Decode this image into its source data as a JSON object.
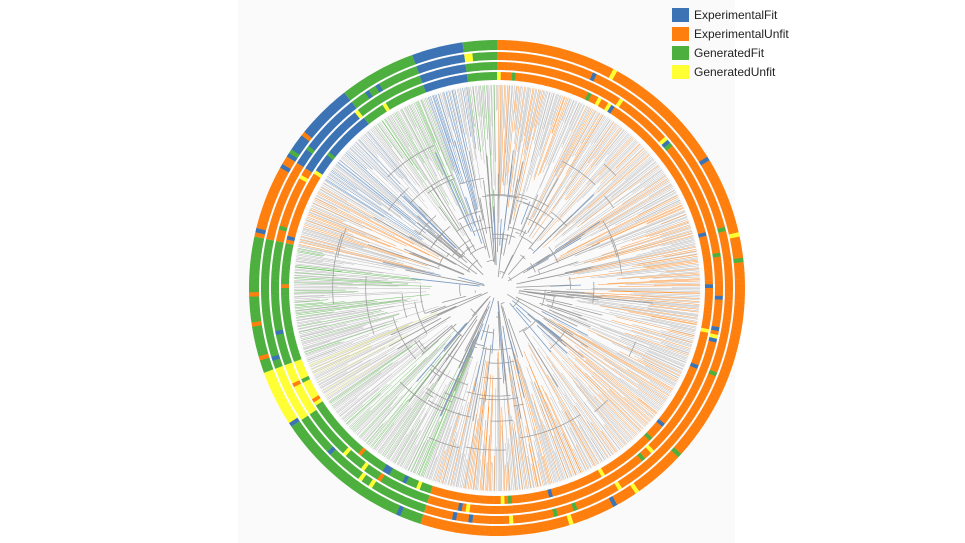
{
  "legend": {
    "items": [
      {
        "label": "ExperimentalFit",
        "color": "#3b73b4"
      },
      {
        "label": "ExperimentalUnfit",
        "color": "#ff7f0e"
      },
      {
        "label": "GeneratedFit",
        "color": "#4caf3e"
      },
      {
        "label": "GeneratedUnfit",
        "color": "#ffff33"
      }
    ]
  },
  "tree": {
    "branch_color": "#aaaaaa",
    "ring_count": 4,
    "sectors": [
      {
        "category": "ExperimentalUnfit",
        "start_deg": -90,
        "end_deg": 108
      },
      {
        "category": "GeneratedFit",
        "start_deg": 108,
        "end_deg": 146
      },
      {
        "category": "GeneratedUnfit",
        "start_deg": 146,
        "end_deg": 160
      },
      {
        "category": "GeneratedFit",
        "start_deg": 160,
        "end_deg": 192
      },
      {
        "category": "ExperimentalUnfit",
        "start_deg": 192,
        "end_deg": 212
      },
      {
        "category": "ExperimentalFit",
        "start_deg": 212,
        "end_deg": 232
      },
      {
        "category": "GeneratedFit",
        "start_deg": 232,
        "end_deg": 250
      },
      {
        "category": "ExperimentalFit",
        "start_deg": 250,
        "end_deg": 262
      },
      {
        "category": "GeneratedFit",
        "start_deg": 262,
        "end_deg": 270
      }
    ]
  }
}
